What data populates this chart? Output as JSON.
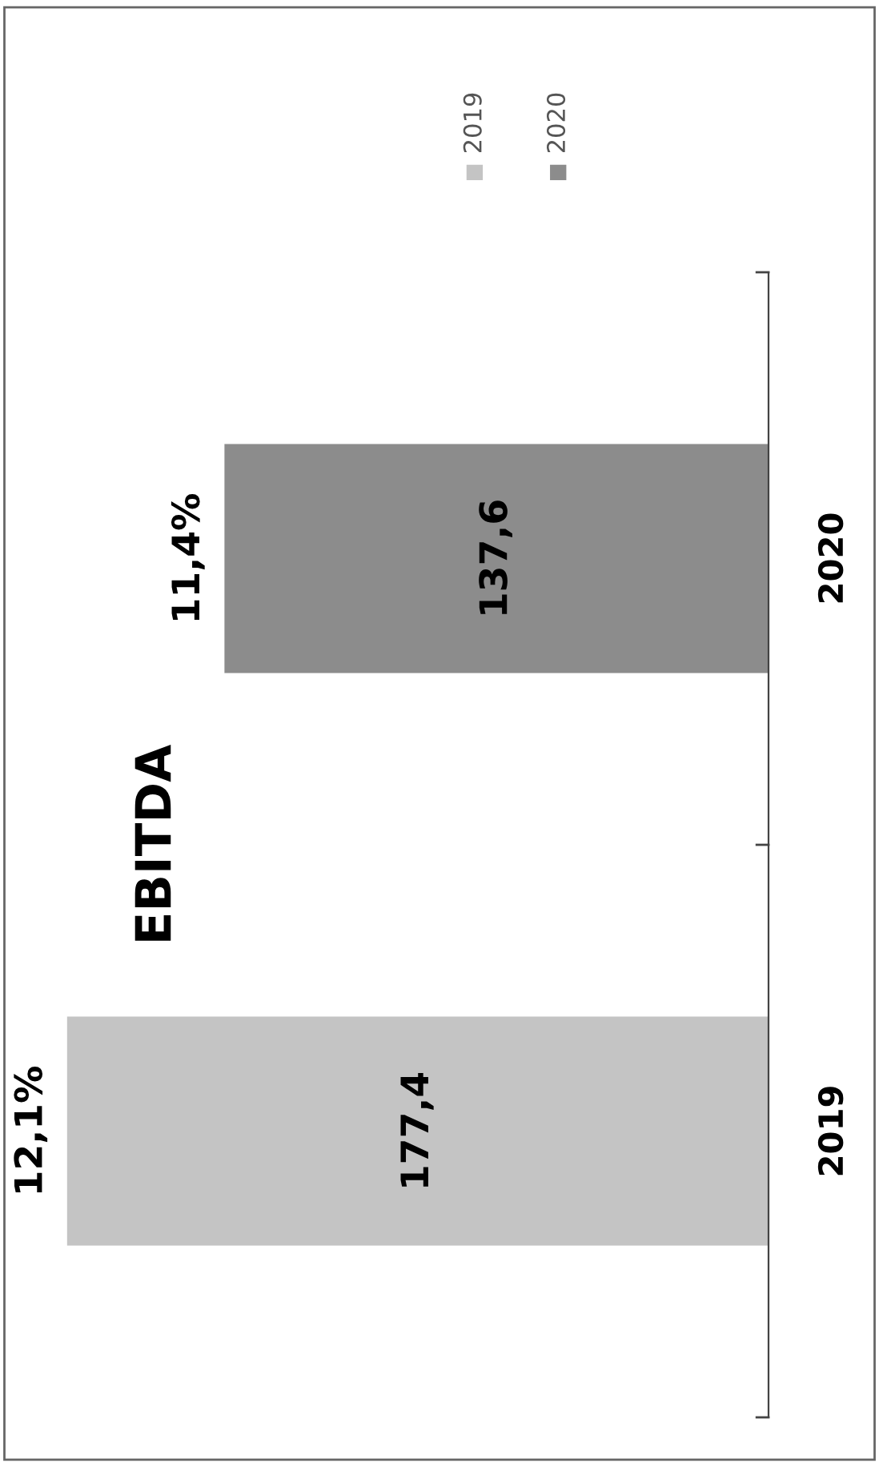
{
  "chart_data": {
    "type": "bar",
    "orientation": "horizontal",
    "title": "EBITDA",
    "categories": [
      "2020",
      "2019"
    ],
    "series": [
      {
        "name": "2019",
        "color": "#c4c4c4",
        "values": [
          null,
          177.4
        ],
        "value_labels": [
          null,
          "177,4"
        ]
      },
      {
        "name": "2020",
        "color": "#8c8c8c",
        "values": [
          137.6,
          null
        ],
        "value_labels": [
          "137,6",
          null
        ]
      }
    ],
    "annotations": [
      {
        "text": "12,1%",
        "x": 177.4,
        "y": "2019"
      },
      {
        "text": "11,4%",
        "x": 137.6,
        "y": "2020"
      }
    ],
    "tick_labels": "y",
    "legend": "top right",
    "grid": false
  }
}
